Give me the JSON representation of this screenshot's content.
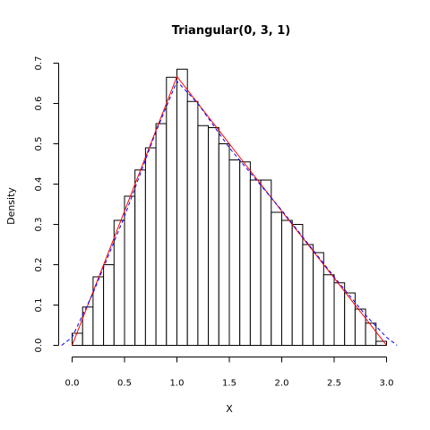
{
  "chart_data": {
    "type": "bar",
    "title": "Triangular(0, 3, 1)",
    "xlabel": "X",
    "ylabel": "Density",
    "xlim": [
      -0.1,
      3.1
    ],
    "ylim": [
      0,
      0.7
    ],
    "x_ticks": [
      "0.0",
      "0.5",
      "1.0",
      "1.5",
      "2.0",
      "2.5",
      "3.0"
    ],
    "x_tick_values": [
      0,
      0.5,
      1,
      1.5,
      2,
      2.5,
      3
    ],
    "y_ticks": [
      "0.0",
      "0.1",
      "0.2",
      "0.3",
      "0.4",
      "0.5",
      "0.6",
      "0.7"
    ],
    "y_tick_values": [
      0,
      0.1,
      0.2,
      0.3,
      0.4,
      0.5,
      0.6,
      0.7
    ],
    "bin_width": 0.1,
    "bins_start": 0,
    "histogram_values": [
      0.03,
      0.095,
      0.17,
      0.2,
      0.31,
      0.37,
      0.435,
      0.49,
      0.55,
      0.665,
      0.685,
      0.605,
      0.545,
      0.54,
      0.5,
      0.46,
      0.455,
      0.41,
      0.41,
      0.33,
      0.31,
      0.3,
      0.25,
      0.23,
      0.175,
      0.155,
      0.13,
      0.09,
      0.055,
      0.01
    ],
    "series": [
      {
        "type": "line",
        "color": "#ff0000",
        "x": [
          0,
          0.5,
          1,
          1.5,
          2,
          2.5,
          3
        ],
        "y": [
          0,
          0.333,
          0.667,
          0.5,
          0.333,
          0.167,
          0
        ]
      },
      {
        "type": "line",
        "style": "dashed",
        "color": "#0000ff",
        "x": [
          -0.1,
          0,
          0.2,
          0.5,
          0.8,
          1,
          1.2,
          1.5,
          2,
          2.5,
          2.8,
          3,
          3.1
        ],
        "y": [
          0,
          0.02,
          0.13,
          0.32,
          0.53,
          0.655,
          0.6,
          0.49,
          0.335,
          0.17,
          0.075,
          0.02,
          0
        ]
      }
    ],
    "colors": {
      "bar_fill": "#ffffff",
      "bar_stroke": "#000000"
    }
  }
}
